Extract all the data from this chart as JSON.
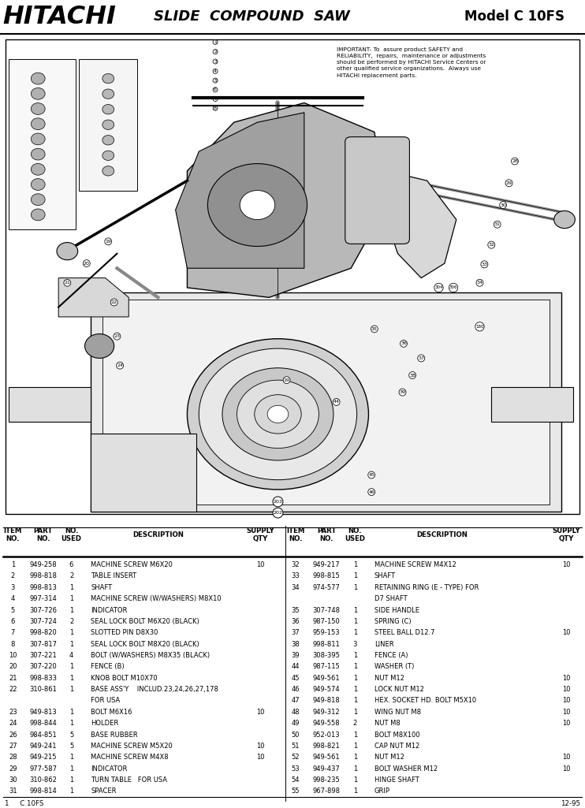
{
  "title_left": "HITACHI",
  "title_center": "SLIDE  COMPOUND  SAW",
  "title_right": "Model C 10FS",
  "important_text": "IMPORTANT- To  assure product SAFETY and\nRELIABILITY,  repairs,  maintenance or adjustments\nshould be performed by HITACHI Service Centers or\nother qualified service organizations.  Always use\nHITACHI replacement parts.",
  "footer_left": "1     C 10FS",
  "footer_right": "12-95",
  "rows": [
    [
      "1",
      "949-258",
      "6",
      "MACHINE SCREW M6X20",
      "10",
      "32",
      "949-217",
      "1",
      "MACHINE SCREW M4X12",
      "10"
    ],
    [
      "2",
      "998-818",
      "2",
      "TABLE INSERT",
      "",
      "33",
      "998-815",
      "1",
      "SHAFT",
      ""
    ],
    [
      "3",
      "998-813",
      "1",
      "SHAFT",
      "",
      "34",
      "974-577",
      "1",
      "RETAINING RING (E - TYPE) FOR",
      ""
    ],
    [
      "4",
      "997-314",
      "1",
      "MACHINE SCREW (W/WASHERS) M8X10",
      "",
      "",
      "",
      "",
      "D7 SHAFT",
      ""
    ],
    [
      "5",
      "307-726",
      "1",
      "INDICATOR",
      "",
      "35",
      "307-748",
      "1",
      "SIDE HANDLE",
      ""
    ],
    [
      "6",
      "307-724",
      "2",
      "SEAL LOCK BOLT M6X20 (BLACK)",
      "",
      "36",
      "987-150",
      "1",
      "SPRING (C)",
      ""
    ],
    [
      "7",
      "998-820",
      "1",
      "SLOTTED PIN D8X30",
      "",
      "37",
      "959-153",
      "1",
      "STEEL BALL D12.7",
      "10"
    ],
    [
      "8",
      "307-817",
      "1",
      "SEAL LOCK BOLT M8X20 (BLACK)",
      "",
      "38",
      "998-811",
      "3",
      "LINER",
      ""
    ],
    [
      "10",
      "307-221",
      "4",
      "BOLT (W/WASHERS) M8X35 (BLACK)",
      "",
      "39",
      "308-395",
      "1",
      "FENCE (A)",
      ""
    ],
    [
      "20",
      "307-220",
      "1",
      "FENCE (B)",
      "",
      "44",
      "987-115",
      "1",
      "WASHER (T)",
      ""
    ],
    [
      "21",
      "998-833",
      "1",
      "KNOB BOLT M10X70",
      "",
      "45",
      "949-561",
      "1",
      "NUT M12",
      "10"
    ],
    [
      "22",
      "310-861",
      "1",
      "BASE ASS'Y    INCLUD.23,24,26,27,178",
      "",
      "46",
      "949-574",
      "1",
      "LOCK NUT M12",
      "10"
    ],
    [
      "",
      "",
      "",
      "FOR USA",
      "",
      "47",
      "949-818",
      "1",
      "HEX. SOCKET HD. BOLT M5X10",
      "10"
    ],
    [
      "23",
      "949-813",
      "1",
      "BOLT M6X16",
      "10",
      "48",
      "949-312",
      "1",
      "WING NUT M8",
      "10"
    ],
    [
      "24",
      "998-844",
      "1",
      "HOLDER",
      "",
      "49",
      "949-558",
      "2",
      "NUT M8",
      "10"
    ],
    [
      "26",
      "984-851",
      "5",
      "BASE RUBBER",
      "",
      "50",
      "952-013",
      "1",
      "BOLT M8X100",
      ""
    ],
    [
      "27",
      "949-241",
      "5",
      "MACHINE SCREW M5X20",
      "10",
      "51",
      "998-821",
      "1",
      "CAP NUT M12",
      ""
    ],
    [
      "28",
      "949-215",
      "1",
      "MACHINE SCREW M4X8",
      "10",
      "52",
      "949-561",
      "1",
      "NUT M12",
      "10"
    ],
    [
      "29",
      "977-587",
      "1",
      "INDICATOR",
      "",
      "53",
      "949-437",
      "1",
      "BOLT WASHER M12",
      "10"
    ],
    [
      "30",
      "310-862",
      "1",
      "TURN TABLE   FOR USA",
      "",
      "54",
      "998-235",
      "1",
      "HINGE SHAFT",
      ""
    ],
    [
      "31",
      "998-814",
      "1",
      "SPACER",
      "",
      "55",
      "967-898",
      "1",
      "GRIP",
      ""
    ]
  ],
  "bg_color": "#ffffff",
  "text_color": "#000000"
}
